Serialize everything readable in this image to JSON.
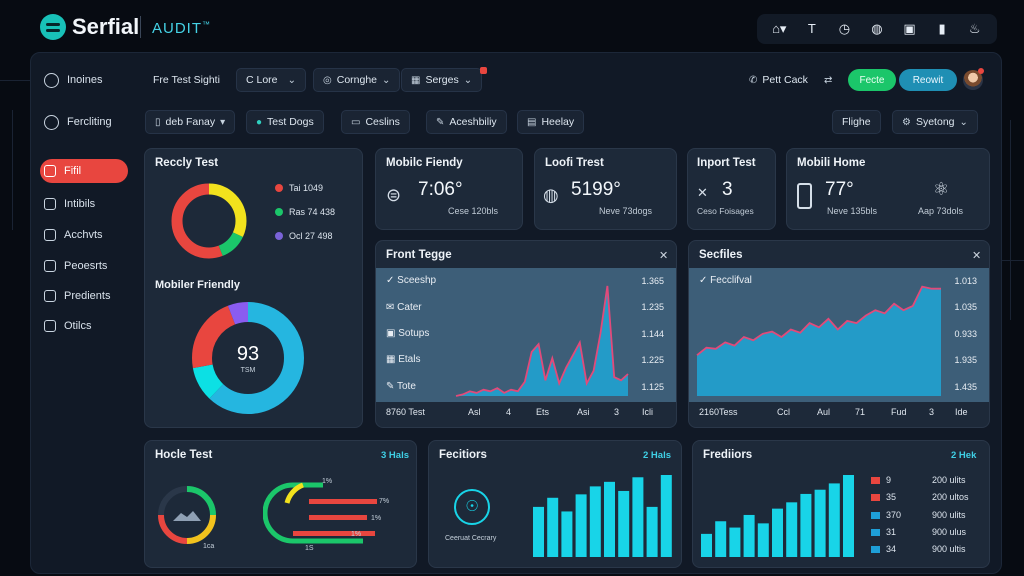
{
  "app": {
    "brand": "Serfial",
    "section": "AUDIT",
    "section_mark": "™"
  },
  "topbar_icons": [
    "home-icon",
    "type-icon",
    "clock-icon",
    "globe-icon",
    "box-icon",
    "bottle-icon",
    "flame-icon"
  ],
  "colors": {
    "accent_red": "#e8463f",
    "accent_green": "#1bc66a",
    "accent_blue": "#1f8fb4",
    "teal": "#18d4e8",
    "card_bg": "#1d2939"
  },
  "sidebar": {
    "items": [
      {
        "label": "Inoines",
        "icon": "inbox-icon"
      },
      {
        "label": "Fercliting",
        "icon": "settings-icon"
      },
      {
        "label": "Fifil",
        "icon": "filter-icon",
        "active": true
      },
      {
        "label": "Intibils",
        "icon": "list-icon"
      },
      {
        "label": "Acchvts",
        "icon": "doc-icon"
      },
      {
        "label": "Peoesrts",
        "icon": "calendar-icon"
      },
      {
        "label": "Predients",
        "icon": "grid-icon"
      },
      {
        "label": "Otilcs",
        "icon": "box-icon"
      }
    ]
  },
  "toolbar1": {
    "title": "Fre Test Sighti",
    "dropdown": "C Lore",
    "menu_a": "Cornghe",
    "menu_b": "Serges",
    "link": "Pett Cack",
    "btn_green": "Fecte",
    "btn_blue": "Reowit"
  },
  "toolbar2": {
    "dropdown": "deb Fanay",
    "tab_a": "Test Dogs",
    "tab_b": "Ceslins",
    "tab_c": "Aceshbiliy",
    "tab_d": "Heelay",
    "right_a": "Flighe",
    "right_b": "Syetong"
  },
  "cards": {
    "recently": {
      "title": "Reccly Test",
      "legend": [
        {
          "label": "Tai 1049",
          "color": "#e8463f"
        },
        {
          "label": "Ras 74 438",
          "color": "#1bc66a"
        },
        {
          "label": "Ocl 27 498",
          "color": "#7a63d8"
        }
      ],
      "donut": [
        {
          "value": 32,
          "color": "#f2e21d"
        },
        {
          "value": 12,
          "color": "#1bc66a"
        },
        {
          "value": 56,
          "color": "#e8463f"
        }
      ],
      "title2": "Mobiler Friendly",
      "gauge_value": "93",
      "gauge_sub": "TSM",
      "gauge": [
        {
          "value": 62,
          "color": "#25b6e0"
        },
        {
          "value": 10,
          "color": "#0ce0e4"
        },
        {
          "value": 22,
          "color": "#e8463f"
        },
        {
          "value": 6,
          "color": "#8a5cf0"
        }
      ]
    },
    "mobile": {
      "title": "Mobilc Fiendy",
      "value": "7:06°",
      "sub": "Cese 120bls"
    },
    "load": {
      "title": "Loofi Trest",
      "value": "5199°",
      "sub": "Neve 73dogs"
    },
    "report": {
      "title": "Inport Test",
      "value": "3",
      "sub": "Ceso Foisages"
    },
    "mobil2": {
      "title": "Mobili Home",
      "value": "77°",
      "sub_a": "Neve 135bls",
      "sub_b": "Aap 73dols"
    },
    "front": {
      "title": "Front Tegge",
      "rows": [
        {
          "label": "Sceeshp",
          "value": "1.365"
        },
        {
          "label": "Cater",
          "value": "1.235"
        },
        {
          "label": "Sotups",
          "value": "1.144"
        },
        {
          "label": "Etals",
          "value": "1.225"
        },
        {
          "label": "Tote",
          "value": "1.125"
        }
      ],
      "axis": [
        "8760 Test",
        "Asl",
        "4",
        "Ets",
        "Asi",
        "3",
        "Icli"
      ],
      "series": [
        0,
        1,
        3,
        2,
        4,
        3,
        5,
        2,
        4,
        3,
        9,
        28,
        33,
        10,
        24,
        8,
        18,
        26,
        34,
        8,
        16,
        40,
        70,
        12,
        10,
        14
      ]
    },
    "section": {
      "title": "Secfiles",
      "rows": [
        {
          "label": "Fecclifval",
          "value": "1.013"
        },
        {
          "label": "",
          "value": "1.035"
        },
        {
          "label": "",
          "value": "0.933"
        },
        {
          "label": "",
          "value": "1.935"
        },
        {
          "label": "",
          "value": "1.435"
        }
      ],
      "axis": [
        "2160Tess",
        "Ccl",
        "Aul",
        "71",
        "Fud",
        "3",
        "Ide"
      ],
      "series": [
        38,
        45,
        44,
        50,
        47,
        55,
        52,
        58,
        60,
        55,
        62,
        59,
        68,
        64,
        72,
        62,
        70,
        68,
        75,
        80,
        77,
        86,
        80,
        84,
        102,
        100,
        100
      ]
    },
    "health": {
      "title": "Hocle Test",
      "link": "3 Hals",
      "gauge_sub": "1ca",
      "bars": [
        {
          "label": "1%",
          "color": "#1bc66a"
        },
        {
          "label": "7%",
          "color": "#e8463f"
        },
        {
          "label": "1%",
          "color": "#e8463f"
        },
        {
          "label": "1%",
          "color": "#e8463f"
        }
      ],
      "foot": "1S"
    },
    "fec": {
      "title": "Fecitiors",
      "link": "2 Hals",
      "icon_label": "Ceeruat Cecrary",
      "bars": [
        44,
        52,
        40,
        55,
        62,
        66,
        58,
        70,
        44,
        72
      ]
    },
    "fre": {
      "title": "Frediiors",
      "link": "2 Hek",
      "bars": [
        22,
        34,
        28,
        40,
        32,
        46,
        52,
        60,
        64,
        70,
        78
      ],
      "legend": [
        {
          "key": "9",
          "value": "200 ulits",
          "color": "#e8463f"
        },
        {
          "key": "35",
          "value": "200 ultos",
          "color": "#e8463f"
        },
        {
          "key": "370",
          "value": "900 ulits",
          "color": "#1e9fd8"
        },
        {
          "key": "31",
          "value": "900 ulus",
          "color": "#1e9fd8"
        },
        {
          "key": "34",
          "value": "900 ultis",
          "color": "#1e9fd8"
        }
      ]
    }
  }
}
